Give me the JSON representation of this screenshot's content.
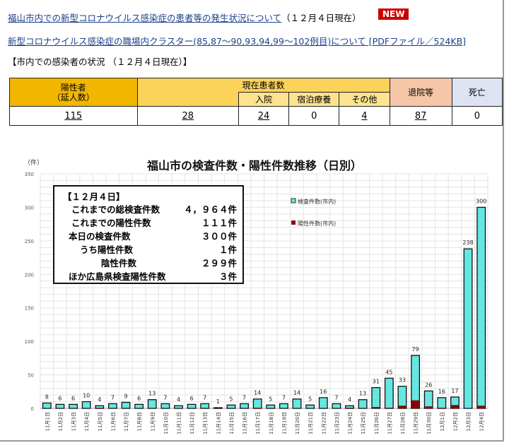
{
  "header": {
    "link1": "福山市内での新型コロナウイルス感染症の患者等の発生状況について",
    "link1_suffix": "（１２月４日現在）",
    "new_badge": "NEW",
    "link2": "新型コロナウイルス感染症の職場内クラスター(85,87～90,93,94,99～102例目)について [PDFファイル／524KB]",
    "section_title": "【市内での感染者の状況 （１２月４日現在）】"
  },
  "status_table": {
    "headers": {
      "positive": "陽性者\n（延人数）",
      "current": "現在患者数",
      "hospital": "入院",
      "hotel": "宿泊療養",
      "other": "その他",
      "discharged": "退院等",
      "death": "死亡"
    },
    "values": {
      "positive": "115",
      "current": "28",
      "hospital": "24",
      "hotel": "0",
      "other": "4",
      "discharged": "87",
      "death": "0"
    }
  },
  "info_box": {
    "date": "【１２月４日】",
    "rows": [
      {
        "label": "これまでの総検査件数",
        "value": "４，９６４件"
      },
      {
        "label": "これまでの陽性件数",
        "value": "１１１件"
      },
      {
        "label": "本日の検査件数",
        "value": "３００件"
      },
      {
        "label": "うち陽性件数",
        "value": "１件"
      },
      {
        "label": "陰性件数",
        "value": "２９９件"
      },
      {
        "label": "ほか広島県検査陽性件数",
        "value": "３件"
      }
    ]
  },
  "chart_data": {
    "type": "bar",
    "title": "福山市の検査件数・陽性件数推移（日別）",
    "ylabel": "（件）",
    "ylim": [
      0,
      350
    ],
    "yticks": [
      0,
      50,
      100,
      150,
      200,
      250,
      300,
      350
    ],
    "grid": true,
    "legend_placement": "top-right",
    "categories": [
      "11月1日",
      "11月2日",
      "11月3日",
      "11月4日",
      "11月5日",
      "11月6日",
      "11月7日",
      "11月8日",
      "11月9日",
      "11月10日",
      "11月11日",
      "11月12日",
      "11月13日",
      "11月14日",
      "11月15日",
      "11月16日",
      "11月17日",
      "11月18日",
      "11月19日",
      "11月20日",
      "11月21日",
      "11月22日",
      "11月23日",
      "11月24日",
      "11月25日",
      "11月26日",
      "11月27日",
      "11月28日",
      "11月29日",
      "11月30日",
      "12月1日",
      "12月2日",
      "12月3日",
      "12月4日"
    ],
    "series": [
      {
        "name": "検査件数(市内)",
        "color": "#66e6e0",
        "values": [
          8,
          6,
          6,
          10,
          4,
          7,
          9,
          6,
          13,
          7,
          4,
          6,
          7,
          1,
          5,
          7,
          14,
          5,
          7,
          14,
          5,
          16,
          7,
          4,
          13,
          31,
          45,
          33,
          79,
          26,
          16,
          17,
          238,
          300
        ]
      },
      {
        "name": "陽性件数(市内)",
        "color": "#8b0000",
        "values": [
          0,
          0,
          0,
          0,
          1,
          0,
          0,
          0,
          0,
          0,
          0,
          0,
          0,
          0,
          0,
          0,
          1,
          0,
          0,
          0,
          0,
          0,
          0,
          1,
          0,
          2,
          1,
          4,
          12,
          3,
          1,
          5,
          0,
          4
        ]
      }
    ]
  }
}
